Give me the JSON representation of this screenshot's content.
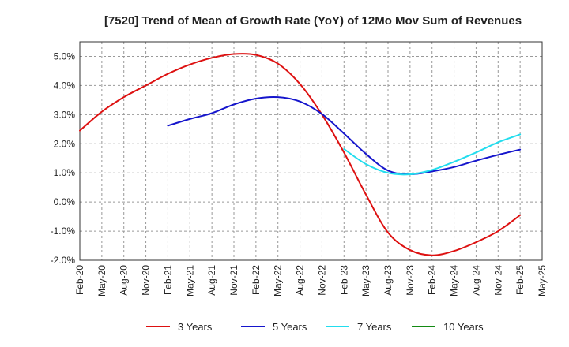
{
  "chart_data": {
    "type": "line",
    "title": "[7520]  Trend of Mean of Growth Rate (YoY) of 12Mo Mov Sum of Revenues",
    "xlabel": "",
    "ylabel": "",
    "ylim": [
      -2.0,
      5.5
    ],
    "grid": true,
    "legend_position": "bottom",
    "categories": [
      "Feb-20",
      "May-20",
      "Aug-20",
      "Nov-20",
      "Feb-21",
      "May-21",
      "Aug-21",
      "Nov-21",
      "Feb-22",
      "May-22",
      "Aug-22",
      "Nov-22",
      "Feb-23",
      "May-23",
      "Aug-23",
      "Nov-23",
      "Feb-24",
      "May-24",
      "Aug-24",
      "Nov-24",
      "Feb-25",
      "May-25"
    ],
    "y_ticks": [
      5.0,
      4.0,
      3.0,
      2.0,
      1.0,
      0.0,
      -1.0,
      -2.0
    ],
    "y_tick_labels": [
      "5.0%",
      "4.0%",
      "3.0%",
      "2.0%",
      "1.0%",
      "0.0%",
      "-1.0%",
      "-2.0%"
    ],
    "series": [
      {
        "name": "3 Years",
        "color": "#dd1111",
        "values": [
          2.45,
          3.1,
          3.6,
          4.0,
          4.4,
          4.72,
          4.95,
          5.08,
          5.05,
          4.75,
          4.05,
          3.0,
          1.7,
          0.25,
          -1.05,
          -1.65,
          -1.83,
          -1.68,
          -1.38,
          -1.0,
          -0.45,
          null
        ]
      },
      {
        "name": "5 Years",
        "color": "#1515cc",
        "values": [
          null,
          null,
          null,
          null,
          2.62,
          2.85,
          3.05,
          3.35,
          3.55,
          3.6,
          3.45,
          3.02,
          2.35,
          1.65,
          1.08,
          0.95,
          1.05,
          1.2,
          1.42,
          1.62,
          1.8,
          null
        ]
      },
      {
        "name": "7 Years",
        "color": "#22ddee",
        "values": [
          null,
          null,
          null,
          null,
          null,
          null,
          null,
          null,
          null,
          null,
          null,
          null,
          1.82,
          1.3,
          1.0,
          0.95,
          1.1,
          1.38,
          1.7,
          2.05,
          2.32,
          null
        ]
      },
      {
        "name": "10 Years",
        "color": "#138a13",
        "values": [
          null,
          null,
          null,
          null,
          null,
          null,
          null,
          null,
          null,
          null,
          null,
          null,
          null,
          null,
          null,
          null,
          null,
          null,
          null,
          null,
          null,
          null
        ]
      }
    ]
  }
}
